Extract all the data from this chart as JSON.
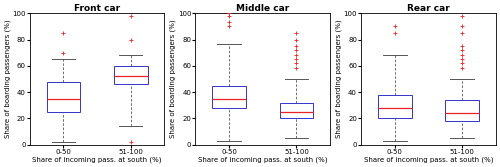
{
  "panels": [
    {
      "title": "Front car",
      "boxes": [
        {
          "label": "0-50",
          "q1": 25,
          "median": 35,
          "q3": 48,
          "whisker_low": 2,
          "whisker_high": 65,
          "outliers": [
            70,
            85
          ]
        },
        {
          "label": "51-100",
          "q1": 46,
          "median": 52,
          "q3": 60,
          "whisker_low": 14,
          "whisker_high": 68,
          "outliers": [
            98,
            80,
            2
          ]
        }
      ],
      "ylim": [
        0,
        100
      ],
      "yticks": [
        0,
        20,
        40,
        60,
        80,
        100
      ]
    },
    {
      "title": "Middle car",
      "boxes": [
        {
          "label": "0-50",
          "q1": 28,
          "median": 35,
          "q3": 45,
          "whisker_low": 3,
          "whisker_high": 77,
          "outliers": [
            90,
            93,
            98,
            100
          ]
        },
        {
          "label": "51-100",
          "q1": 20,
          "median": 25,
          "q3": 32,
          "whisker_low": 5,
          "whisker_high": 50,
          "outliers": [
            58,
            62,
            65,
            68,
            72,
            75,
            80,
            85
          ]
        }
      ],
      "ylim": [
        0,
        100
      ],
      "yticks": [
        0,
        20,
        40,
        60,
        80,
        100
      ]
    },
    {
      "title": "Rear car",
      "boxes": [
        {
          "label": "0-50",
          "q1": 20,
          "median": 28,
          "q3": 38,
          "whisker_low": 3,
          "whisker_high": 68,
          "outliers": [
            85,
            90
          ]
        },
        {
          "label": "51-100",
          "q1": 18,
          "median": 24,
          "q3": 34,
          "whisker_low": 5,
          "whisker_high": 50,
          "outliers": [
            58,
            62,
            65,
            68,
            72,
            75,
            85,
            90,
            98
          ]
        }
      ],
      "ylim": [
        0,
        100
      ],
      "yticks": [
        0,
        20,
        40,
        60,
        80,
        100
      ]
    }
  ],
  "box_edge_color": "#3333CC",
  "median_color": "#EE2222",
  "whisker_color": "#555555",
  "outlier_color": "#EE2222",
  "ylabel": "Share of boarding passengers (%)",
  "xlabel": "Share of incoming pass. at south (%)",
  "box_width": 0.5,
  "figsize": [
    5.0,
    1.67
  ],
  "dpi": 100,
  "title_fontsize": 6.5,
  "label_fontsize": 5.0,
  "tick_fontsize": 5.0
}
